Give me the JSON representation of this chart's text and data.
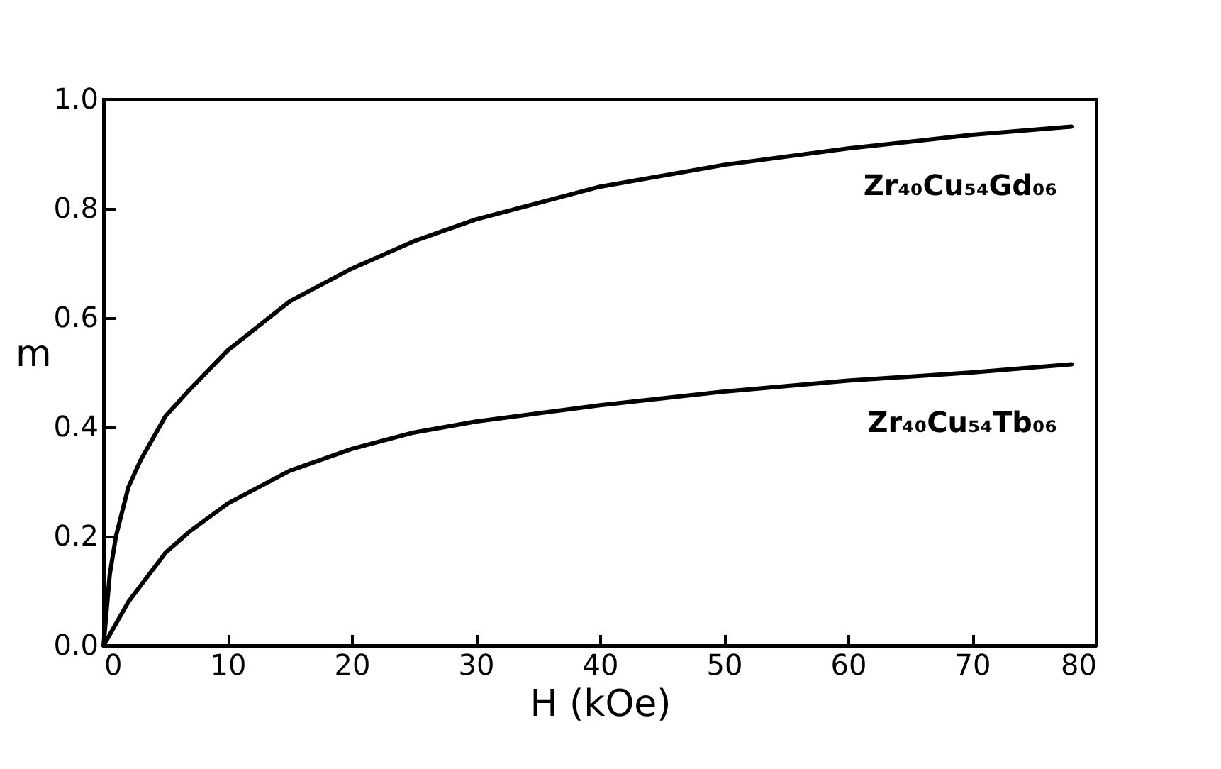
{
  "chart_data": {
    "type": "line",
    "xlabel": "H (kOe)",
    "ylabel": "m",
    "xlim": [
      0,
      80
    ],
    "xticks": [
      0,
      10,
      20,
      30,
      40,
      50,
      60,
      70,
      80
    ],
    "ylim": [
      0,
      1
    ],
    "yticks": [
      {
        "value": 0,
        "label": "0.0"
      },
      {
        "value": 0.2,
        "label": "0.2"
      },
      {
        "value": 0.4,
        "label": "0.4"
      },
      {
        "value": 0.6,
        "label": "0.6"
      },
      {
        "value": 0.8,
        "label": "0.8"
      },
      {
        "value": 1,
        "label": "1.0"
      }
    ],
    "grid": false,
    "legend": false,
    "marker": "none",
    "line_style": "solid",
    "series": [
      {
        "name": "Zr₄₀Cu₅₄Gd₀₆",
        "color": "#000000",
        "x": [
          0,
          0.5,
          1,
          2,
          3,
          5,
          7,
          10,
          15,
          20,
          25,
          30,
          40,
          50,
          60,
          70,
          78
        ],
        "values": [
          0,
          0.13,
          0.2,
          0.29,
          0.34,
          0.42,
          0.47,
          0.54,
          0.63,
          0.69,
          0.74,
          0.78,
          0.84,
          0.88,
          0.91,
          0.935,
          0.95
        ]
      },
      {
        "name": "Zr₄₀Cu₅₄Tb₀₆",
        "color": "#000000",
        "x": [
          0,
          1,
          2,
          3,
          5,
          7,
          10,
          15,
          20,
          25,
          30,
          40,
          50,
          60,
          70,
          78
        ],
        "values": [
          0,
          0.04,
          0.08,
          0.11,
          0.17,
          0.21,
          0.26,
          0.32,
          0.36,
          0.39,
          0.41,
          0.44,
          0.465,
          0.485,
          0.5,
          0.515
        ]
      }
    ]
  }
}
